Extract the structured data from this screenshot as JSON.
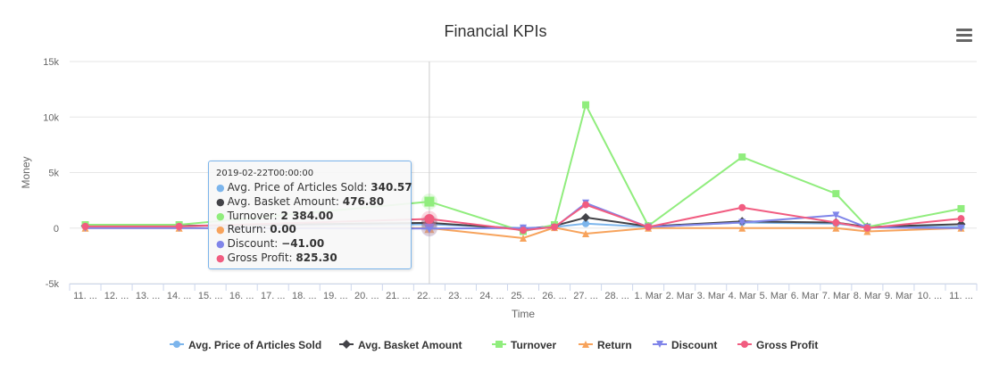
{
  "chart_data": {
    "type": "line",
    "title": "Financial KPIs",
    "xlabel": "Time",
    "ylabel": "Money",
    "ylim": [
      -5000,
      15000
    ],
    "yticks": [
      "-5k",
      "0",
      "5k",
      "10k",
      "15k"
    ],
    "ytick_values": [
      -5000,
      0,
      5000,
      10000,
      15000
    ],
    "grid": true,
    "legend_position": "bottom",
    "categories": [
      "11. ...",
      "12. ...",
      "13. ...",
      "14. ...",
      "15. ...",
      "16. ...",
      "17. ...",
      "18. ...",
      "19. ...",
      "20. ...",
      "21. ...",
      "22. ...",
      "23. ...",
      "24. ...",
      "25. ...",
      "26. ...",
      "27. ...",
      "28. ...",
      "1. Mar",
      "2. Mar",
      "3. Mar",
      "4. Mar",
      "5. Mar",
      "6. Mar",
      "7. Mar",
      "8. Mar",
      "9. Mar",
      "10. ...",
      "11. ..."
    ],
    "series": [
      {
        "name": "Avg. Price of Articles Sold",
        "color": "#7cb5ec",
        "marker": "circle",
        "points": [
          [
            0,
            200
          ],
          [
            3,
            200
          ],
          [
            11,
            340.57
          ],
          [
            14,
            0
          ],
          [
            15,
            100
          ],
          [
            16,
            400
          ],
          [
            18,
            100
          ],
          [
            21,
            500
          ],
          [
            24,
            400
          ],
          [
            25,
            100
          ],
          [
            28,
            100
          ]
        ]
      },
      {
        "name": "Avg. Basket Amount",
        "color": "#434348",
        "marker": "diamond",
        "points": [
          [
            0,
            200
          ],
          [
            3,
            200
          ],
          [
            11,
            476.8
          ],
          [
            14,
            -100
          ],
          [
            15,
            200
          ],
          [
            16,
            950
          ],
          [
            18,
            150
          ],
          [
            21,
            600
          ],
          [
            24,
            500
          ],
          [
            25,
            100
          ],
          [
            28,
            350
          ]
        ]
      },
      {
        "name": "Turnover",
        "color": "#90ed7d",
        "marker": "square",
        "points": [
          [
            0,
            300
          ],
          [
            3,
            300
          ],
          [
            11,
            2384.0
          ],
          [
            14,
            -300
          ],
          [
            15,
            300
          ],
          [
            16,
            11100
          ],
          [
            18,
            200
          ],
          [
            21,
            6400
          ],
          [
            24,
            3100
          ],
          [
            25,
            100
          ],
          [
            28,
            1750
          ]
        ]
      },
      {
        "name": "Return",
        "color": "#f7a35c",
        "marker": "triangle",
        "points": [
          [
            0,
            0
          ],
          [
            3,
            0
          ],
          [
            11,
            0.0
          ],
          [
            14,
            -900
          ],
          [
            15,
            50
          ],
          [
            16,
            -500
          ],
          [
            18,
            0
          ],
          [
            21,
            0
          ],
          [
            24,
            0
          ],
          [
            25,
            -300
          ],
          [
            28,
            0
          ]
        ]
      },
      {
        "name": "Discount",
        "color": "#8085e9",
        "marker": "triangle-down",
        "points": [
          [
            0,
            0
          ],
          [
            3,
            0
          ],
          [
            11,
            -41.0
          ],
          [
            14,
            0
          ],
          [
            15,
            50
          ],
          [
            16,
            2250
          ],
          [
            18,
            100
          ],
          [
            21,
            500
          ],
          [
            24,
            1150
          ],
          [
            25,
            50
          ],
          [
            28,
            0
          ]
        ]
      },
      {
        "name": "Gross Profit",
        "color": "#f15c80",
        "marker": "circle",
        "points": [
          [
            0,
            150
          ],
          [
            3,
            150
          ],
          [
            11,
            825.3
          ],
          [
            14,
            -200
          ],
          [
            15,
            100
          ],
          [
            16,
            2100
          ],
          [
            18,
            100
          ],
          [
            21,
            1850
          ],
          [
            24,
            500
          ],
          [
            25,
            0
          ],
          [
            28,
            850
          ]
        ]
      }
    ],
    "hover_index": 11
  },
  "tooltip": {
    "header": "2019-02-22T00:00:00",
    "rows": [
      {
        "label": "Avg. Price of Articles Sold: ",
        "value": "340.57",
        "color": "#7cb5ec"
      },
      {
        "label": "Avg. Basket Amount: ",
        "value": "476.80",
        "color": "#434348"
      },
      {
        "label": "Turnover: ",
        "value": "2 384.00",
        "color": "#90ed7d"
      },
      {
        "label": "Return: ",
        "value": "0.00",
        "color": "#f7a35c"
      },
      {
        "label": "Discount: ",
        "value": "−41.00",
        "color": "#8085e9"
      },
      {
        "label": "Gross Profit: ",
        "value": "825.30",
        "color": "#f15c80"
      }
    ]
  },
  "menu": {
    "icon": "hamburger-menu-icon"
  }
}
